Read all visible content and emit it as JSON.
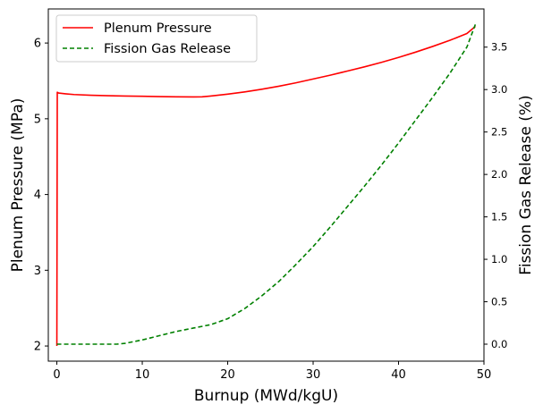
{
  "chart_data": {
    "type": "line",
    "title": "",
    "xlabel": "Burnup (MWd/kgU)",
    "ylabel_left": "Plenum Pressure (MPa)",
    "ylabel_right": "Fission Gas Release (%)",
    "xlim": [
      -1,
      50
    ],
    "ylim_left": [
      1.8,
      6.45
    ],
    "ylim_right": [
      -0.2,
      3.95
    ],
    "x_ticks": [
      0,
      10,
      20,
      30,
      40,
      50
    ],
    "y_left_ticks": [
      2,
      3,
      4,
      5,
      6
    ],
    "y_right_ticks": [
      0.0,
      0.5,
      1.0,
      1.5,
      2.0,
      2.5,
      3.0,
      3.5
    ],
    "legend_position": "top-left",
    "grid": false,
    "series": [
      {
        "name": "Plenum Pressure",
        "axis": "left",
        "color": "#ff0000",
        "style": "solid",
        "x": [
          0,
          0.05,
          0.2,
          1,
          2,
          4,
          6,
          8,
          10,
          12,
          14,
          16,
          17,
          18,
          20,
          22,
          24,
          26,
          28,
          30,
          32,
          34,
          36,
          38,
          40,
          42,
          44,
          46,
          48,
          49
        ],
        "y": [
          2.0,
          5.35,
          5.34,
          5.33,
          5.32,
          5.31,
          5.305,
          5.3,
          5.297,
          5.293,
          5.29,
          5.288,
          5.29,
          5.3,
          5.325,
          5.355,
          5.39,
          5.43,
          5.475,
          5.525,
          5.575,
          5.63,
          5.685,
          5.745,
          5.81,
          5.88,
          5.955,
          6.035,
          6.125,
          6.22
        ]
      },
      {
        "name": "Fission Gas Release",
        "axis": "right",
        "color": "#008000",
        "style": "dashed",
        "x": [
          0,
          2,
          4,
          6,
          7,
          8,
          10,
          12,
          14,
          16,
          18,
          20,
          22,
          24,
          26,
          28,
          30,
          32,
          34,
          36,
          38,
          40,
          42,
          44,
          46,
          48,
          49
        ],
        "y": [
          0.0,
          0.0,
          0.0,
          0.0,
          0.0,
          0.01,
          0.05,
          0.1,
          0.15,
          0.19,
          0.23,
          0.3,
          0.42,
          0.57,
          0.74,
          0.94,
          1.15,
          1.38,
          1.62,
          1.86,
          2.11,
          2.37,
          2.64,
          2.91,
          3.19,
          3.5,
          3.77
        ]
      }
    ]
  }
}
